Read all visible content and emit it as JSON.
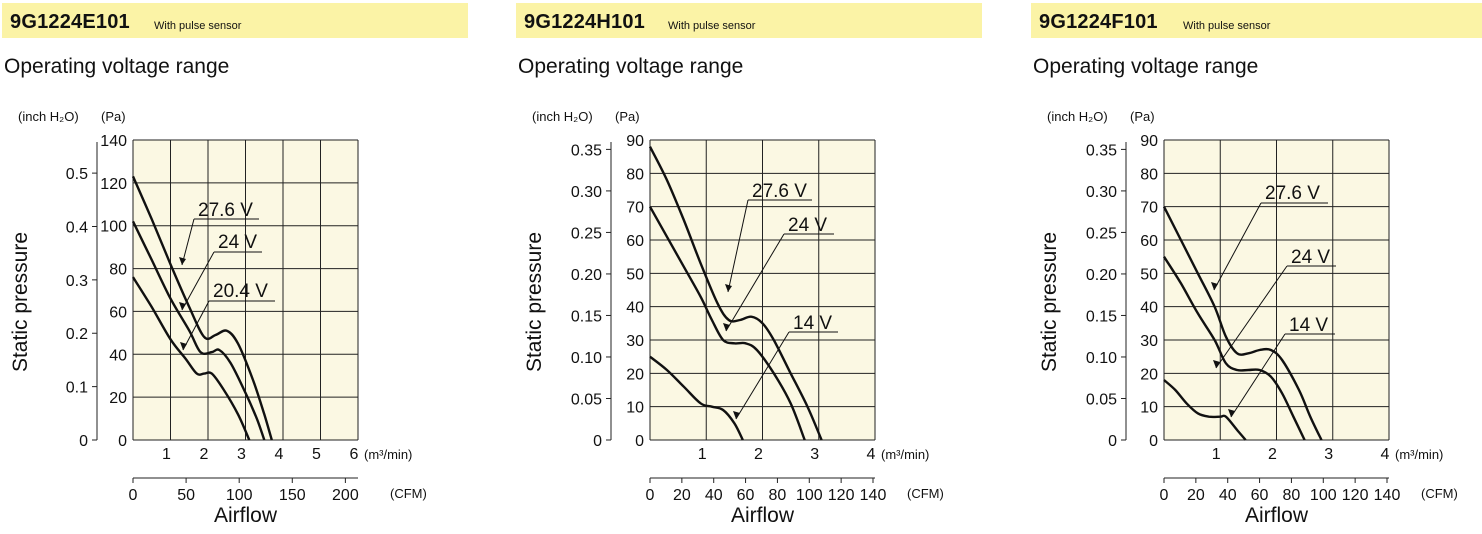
{
  "chart_data": [
    {
      "type": "line",
      "model": "9G1224E101",
      "note": "With pulse sensor",
      "title": "Operating voltage range",
      "ylabel": "Static pressure",
      "xlabel": "Airflow",
      "y_unit_left": "(inch H₂O)",
      "y_unit_right": "(Pa)",
      "x_unit_top": "(m³/min)",
      "x_unit_bottom": "(CFM)",
      "ylim_pa": [
        0,
        140
      ],
      "xlim_m3": [
        0,
        6
      ],
      "y_ticks_pa": [
        "0",
        "20",
        "40",
        "60",
        "80",
        "100",
        "120",
        "140"
      ],
      "y_ticks_inch": [
        {
          "label": "0",
          "v": 0
        },
        {
          "label": "0.1",
          "v": 0.1
        },
        {
          "label": "0.2",
          "v": 0.2
        },
        {
          "label": "0.3",
          "v": 0.3
        },
        {
          "label": "0.4",
          "v": 0.4
        },
        {
          "label": "0.5",
          "v": 0.5
        }
      ],
      "x_ticks_m3": [
        "1",
        "2",
        "3",
        "4",
        "5",
        "6"
      ],
      "x_ticks_cfm": [
        {
          "label": "0",
          "v": 0
        },
        {
          "label": "50",
          "v": 50
        },
        {
          "label": "100",
          "v": 100
        },
        {
          "label": "150",
          "v": 150
        },
        {
          "label": "200",
          "v": 200
        }
      ],
      "grid": true,
      "series": [
        {
          "name": "27.6 V",
          "points": [
            [
              0,
              123
            ],
            [
              0.5,
              103
            ],
            [
              1,
              82
            ],
            [
              1.5,
              62
            ],
            [
              1.9,
              48
            ],
            [
              2.2,
              49
            ],
            [
              2.5,
              51
            ],
            [
              2.8,
              45
            ],
            [
              3.2,
              28
            ],
            [
              3.5,
              12
            ],
            [
              3.7,
              0
            ]
          ]
        },
        {
          "name": "24 V",
          "points": [
            [
              0,
              102
            ],
            [
              0.5,
              84
            ],
            [
              1,
              66
            ],
            [
              1.5,
              51
            ],
            [
              1.8,
              41
            ],
            [
              2.1,
              41
            ],
            [
              2.3,
              42
            ],
            [
              2.6,
              36
            ],
            [
              3.0,
              22
            ],
            [
              3.3,
              10
            ],
            [
              3.5,
              0
            ]
          ]
        },
        {
          "name": "20.4 V",
          "points": [
            [
              0,
              76
            ],
            [
              0.5,
              62
            ],
            [
              1,
              47
            ],
            [
              1.4,
              38
            ],
            [
              1.7,
              31
            ],
            [
              1.9,
              31
            ],
            [
              2.1,
              31
            ],
            [
              2.4,
              24
            ],
            [
              2.8,
              12
            ],
            [
              3.1,
              0
            ]
          ]
        }
      ]
    },
    {
      "type": "line",
      "model": "9G1224H101",
      "note": "With pulse sensor",
      "title": "Operating voltage range",
      "ylabel": "Static pressure",
      "xlabel": "Airflow",
      "y_unit_left": "(inch H₂O)",
      "y_unit_right": "(Pa)",
      "x_unit_top": "(m³/min)",
      "x_unit_bottom": "(CFM)",
      "ylim_pa": [
        0,
        90
      ],
      "xlim_m3": [
        0,
        4
      ],
      "y_ticks_pa": [
        "0",
        "10",
        "20",
        "30",
        "40",
        "50",
        "60",
        "70",
        "80",
        "90"
      ],
      "y_ticks_inch": [
        {
          "label": "0",
          "v": 0
        },
        {
          "label": "0.05",
          "v": 0.05
        },
        {
          "label": "0.10",
          "v": 0.1
        },
        {
          "label": "0.15",
          "v": 0.15
        },
        {
          "label": "0.20",
          "v": 0.2
        },
        {
          "label": "0.25",
          "v": 0.25
        },
        {
          "label": "0.30",
          "v": 0.3
        },
        {
          "label": "0.35",
          "v": 0.35
        }
      ],
      "x_ticks_m3": [
        "1",
        "2",
        "3",
        "4"
      ],
      "x_ticks_cfm": [
        {
          "label": "0",
          "v": 0
        },
        {
          "label": "20",
          "v": 20
        },
        {
          "label": "40",
          "v": 40
        },
        {
          "label": "60",
          "v": 60
        },
        {
          "label": "80",
          "v": 80
        },
        {
          "label": "100",
          "v": 100
        },
        {
          "label": "120",
          "v": 120
        },
        {
          "label": "140",
          "v": 140
        }
      ],
      "grid": true,
      "series": [
        {
          "name": "27.6 V",
          "points": [
            [
              0,
              88
            ],
            [
              0.3,
              78
            ],
            [
              0.6,
              66
            ],
            [
              0.9,
              53
            ],
            [
              1.2,
              41
            ],
            [
              1.4,
              36
            ],
            [
              1.6,
              36
            ],
            [
              1.8,
              37
            ],
            [
              2.0,
              35
            ],
            [
              2.2,
              30
            ],
            [
              2.5,
              20
            ],
            [
              2.8,
              10
            ],
            [
              3.05,
              0
            ]
          ]
        },
        {
          "name": "24 V",
          "points": [
            [
              0,
              70
            ],
            [
              0.3,
              61
            ],
            [
              0.6,
              52
            ],
            [
              0.9,
              43
            ],
            [
              1.1,
              36
            ],
            [
              1.3,
              30
            ],
            [
              1.5,
              29
            ],
            [
              1.7,
              29
            ],
            [
              1.9,
              27
            ],
            [
              2.2,
              20
            ],
            [
              2.5,
              11
            ],
            [
              2.75,
              0
            ]
          ]
        },
        {
          "name": "14 V",
          "points": [
            [
              0,
              25
            ],
            [
              0.3,
              21
            ],
            [
              0.6,
              16
            ],
            [
              0.9,
              11
            ],
            [
              1.1,
              10
            ],
            [
              1.3,
              9
            ],
            [
              1.5,
              5
            ],
            [
              1.65,
              0
            ]
          ]
        }
      ]
    },
    {
      "type": "line",
      "model": "9G1224F101",
      "note": "With pulse sensor",
      "title": "Operating voltage range",
      "ylabel": "Static pressure",
      "xlabel": "Airflow",
      "y_unit_left": "(inch H₂O)",
      "y_unit_right": "(Pa)",
      "x_unit_top": "(m³/min)",
      "x_unit_bottom": "(CFM)",
      "ylim_pa": [
        0,
        90
      ],
      "xlim_m3": [
        0,
        4
      ],
      "y_ticks_pa": [
        "0",
        "10",
        "20",
        "30",
        "40",
        "50",
        "60",
        "70",
        "80",
        "90"
      ],
      "y_ticks_inch": [
        {
          "label": "0",
          "v": 0
        },
        {
          "label": "0.05",
          "v": 0.05
        },
        {
          "label": "0.10",
          "v": 0.1
        },
        {
          "label": "0.15",
          "v": 0.15
        },
        {
          "label": "0.20",
          "v": 0.2
        },
        {
          "label": "0.25",
          "v": 0.25
        },
        {
          "label": "0.30",
          "v": 0.3
        },
        {
          "label": "0.35",
          "v": 0.35
        }
      ],
      "x_ticks_m3": [
        "1",
        "2",
        "3",
        "4"
      ],
      "x_ticks_cfm": [
        {
          "label": "0",
          "v": 0
        },
        {
          "label": "20",
          "v": 20
        },
        {
          "label": "40",
          "v": 40
        },
        {
          "label": "60",
          "v": 60
        },
        {
          "label": "80",
          "v": 80
        },
        {
          "label": "100",
          "v": 100
        },
        {
          "label": "120",
          "v": 120
        },
        {
          "label": "140",
          "v": 140
        }
      ],
      "grid": true,
      "series": [
        {
          "name": "27.6 V",
          "points": [
            [
              0,
              70
            ],
            [
              0.3,
              60
            ],
            [
              0.6,
              50
            ],
            [
              0.9,
              40
            ],
            [
              1.1,
              31
            ],
            [
              1.3,
              26
            ],
            [
              1.5,
              26
            ],
            [
              1.7,
              27
            ],
            [
              1.9,
              27
            ],
            [
              2.1,
              24
            ],
            [
              2.4,
              15
            ],
            [
              2.6,
              7
            ],
            [
              2.8,
              0
            ]
          ]
        },
        {
          "name": "24 V",
          "points": [
            [
              0,
              55
            ],
            [
              0.3,
              47
            ],
            [
              0.6,
              38
            ],
            [
              0.9,
              30
            ],
            [
              1.1,
              23
            ],
            [
              1.3,
              21
            ],
            [
              1.5,
              21
            ],
            [
              1.7,
              21
            ],
            [
              1.9,
              19
            ],
            [
              2.1,
              14
            ],
            [
              2.3,
              7
            ],
            [
              2.5,
              0
            ]
          ]
        },
        {
          "name": "14 V",
          "points": [
            [
              0,
              18
            ],
            [
              0.2,
              15
            ],
            [
              0.4,
              11
            ],
            [
              0.6,
              8
            ],
            [
              0.8,
              7
            ],
            [
              1.0,
              7
            ],
            [
              1.1,
              7
            ],
            [
              1.3,
              3
            ],
            [
              1.45,
              0
            ]
          ]
        }
      ]
    }
  ],
  "style": {
    "plot_bg": "#fbf8e3",
    "title_bg": "#fbf3a6",
    "line": "#111111"
  }
}
